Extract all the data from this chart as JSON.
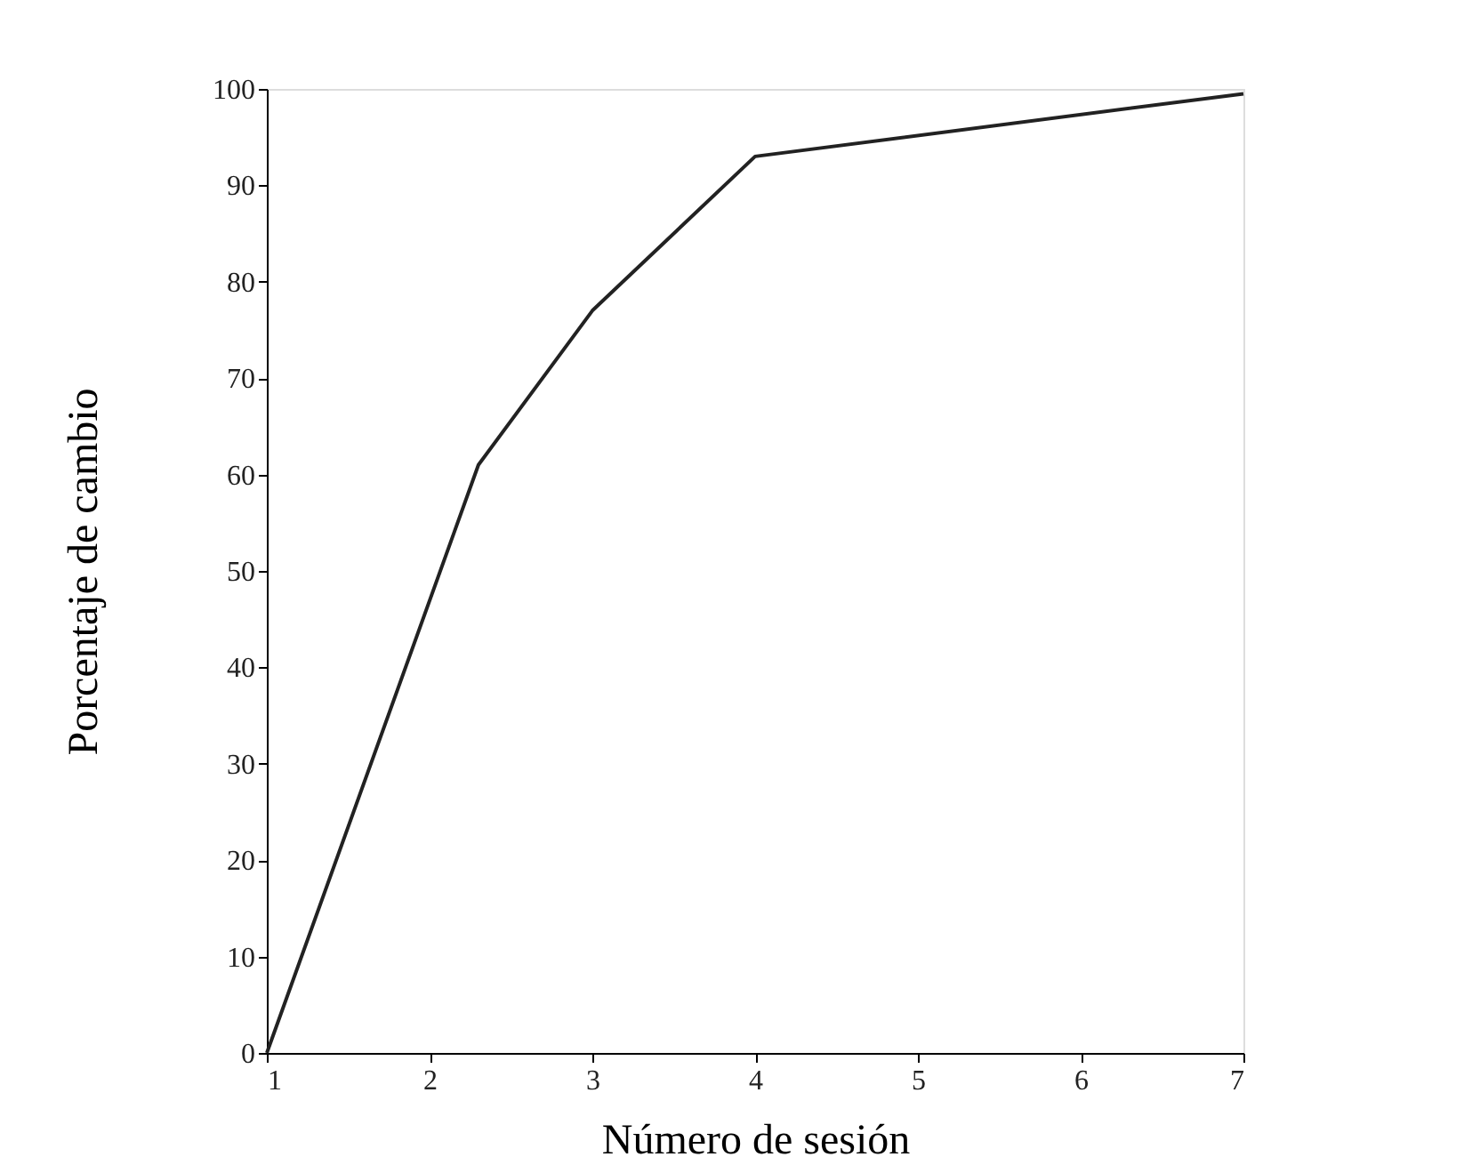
{
  "chart_data": {
    "type": "line",
    "xlabel": "Número de sesión",
    "ylabel": "Porcentaje de cambio",
    "x": [
      1,
      2.3,
      3,
      4,
      7
    ],
    "series": [
      {
        "color": "#222222",
        "values": [
          0,
          61,
          77,
          93,
          99.5
        ]
      }
    ],
    "xlim": [
      1,
      7
    ],
    "xticks": [
      1,
      2,
      3,
      4,
      5,
      6,
      7
    ],
    "ylim": [
      0,
      100
    ],
    "yticks": [
      0,
      10,
      20,
      30,
      40,
      50,
      60,
      70,
      80,
      90,
      100
    ],
    "grid": false,
    "legend": false,
    "marker": "none",
    "line_style": "solid"
  }
}
